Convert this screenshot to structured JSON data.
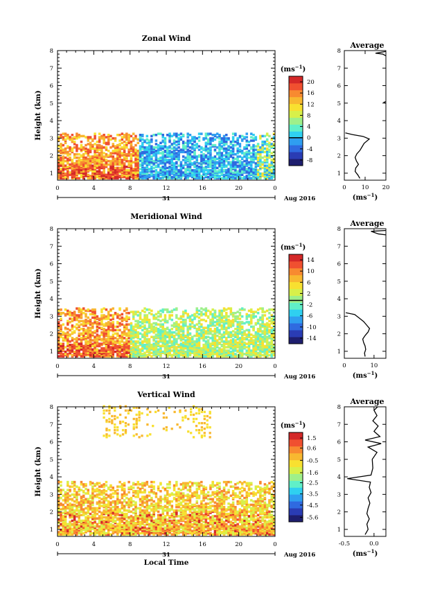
{
  "colors": {
    "scale": [
      "#1e1e6e",
      "#2a3cb4",
      "#2f6ae0",
      "#2f9ef0",
      "#2fd0f0",
      "#60f0c8",
      "#9ef08a",
      "#d8f04a",
      "#f8e030",
      "#f8b830",
      "#f88a30",
      "#f05030",
      "#d42828"
    ],
    "axis": "#000000"
  },
  "chart_data": [
    {
      "type": "heatmap",
      "title": "Zonal Wind",
      "ylabel": "Height (km)",
      "xlabel": "",
      "x_ticks": [
        "0",
        "4",
        "8",
        "12",
        "16",
        "20",
        "0"
      ],
      "y_ticks": [
        "1",
        "2",
        "3",
        "4",
        "5",
        "6",
        "7",
        "8"
      ],
      "x_range": [
        0,
        24
      ],
      "y_range": [
        0.6,
        8.0
      ],
      "date_label": "31",
      "date_suffix": "Aug 2016",
      "colorbar": {
        "unit": "(ms",
        "unit_exp": "−1",
        "unit_close": ")",
        "ticks": [
          "20",
          "16",
          "12",
          "8",
          "4",
          "0",
          "-4",
          "-8"
        ],
        "range": [
          -10,
          22
        ],
        "zero_line": 0
      },
      "profile": {
        "title": "Average",
        "xlabel": "(ms",
        "xlabel_exp": "−1",
        "xlabel_close": ")",
        "x_ticks": [
          "0",
          "10",
          "20"
        ],
        "x_range": [
          0,
          20
        ],
        "points": [
          [
            7.5,
            0.7
          ],
          [
            6.5,
            0.9
          ],
          [
            5.2,
            1.1
          ],
          [
            5.5,
            1.3
          ],
          [
            6.8,
            1.5
          ],
          [
            5.8,
            1.7
          ],
          [
            5.2,
            1.9
          ],
          [
            6.0,
            2.1
          ],
          [
            7.5,
            2.3
          ],
          [
            8.5,
            2.5
          ],
          [
            9.5,
            2.7
          ],
          [
            12.0,
            2.95
          ],
          [
            9.0,
            3.1
          ],
          [
            4.0,
            3.2
          ],
          [
            0.5,
            3.3
          ]
        ],
        "upper_points": [
          [
            20.0,
            7.95
          ],
          [
            15.0,
            7.85
          ],
          [
            18.5,
            7.8
          ],
          [
            20.0,
            7.7
          ]
        ],
        "blip": [
          [
            20,
            5.0
          ],
          [
            19.0,
            5.05
          ],
          [
            20,
            5.1
          ]
        ]
      },
      "field": {
        "layers": [
          [
            1.0,
            10,
            6
          ],
          [
            1.6,
            7,
            6
          ],
          [
            2.2,
            8,
            5
          ],
          [
            2.8,
            10,
            4
          ]
        ],
        "active_hours": [
          [
            0,
            9,
            "warm"
          ],
          [
            9,
            15,
            "cool"
          ],
          [
            15,
            22,
            "cool"
          ],
          [
            22,
            24,
            "mix"
          ]
        ],
        "top_km": 3.2
      }
    },
    {
      "type": "heatmap",
      "title": "Meridional Wind",
      "ylabel": "Height (km)",
      "xlabel": "",
      "x_ticks": [
        "0",
        "4",
        "8",
        "12",
        "16",
        "20",
        "0"
      ],
      "y_ticks": [
        "1",
        "2",
        "3",
        "4",
        "5",
        "6",
        "7",
        "8"
      ],
      "x_range": [
        0,
        24
      ],
      "y_range": [
        0.6,
        8.0
      ],
      "date_label": "31",
      "date_suffix": "Aug 2016",
      "colorbar": {
        "unit": "(ms",
        "unit_exp": "−1",
        "unit_close": ")",
        "ticks": [
          "14",
          "10",
          "6",
          "2",
          "-2",
          "-6",
          "-10",
          "-14"
        ],
        "range": [
          -16,
          16
        ],
        "zero_line": -0.5
      },
      "profile": {
        "title": "Average",
        "xlabel": "(ms",
        "xlabel_exp": "−1",
        "xlabel_close": ")",
        "x_ticks": [
          "0",
          "10"
        ],
        "x_range": [
          0,
          14
        ],
        "points": [
          [
            7.0,
            0.7
          ],
          [
            6.8,
            0.9
          ],
          [
            7.2,
            1.1
          ],
          [
            7.0,
            1.3
          ],
          [
            6.5,
            1.5
          ],
          [
            6.2,
            1.7
          ],
          [
            7.0,
            1.9
          ],
          [
            8.0,
            2.1
          ],
          [
            8.5,
            2.3
          ],
          [
            7.5,
            2.5
          ],
          [
            6.5,
            2.7
          ],
          [
            5.0,
            2.9
          ],
          [
            3.5,
            3.1
          ],
          [
            0.5,
            3.2
          ]
        ],
        "upper_points": [
          [
            14,
            7.9
          ],
          [
            9.0,
            7.85
          ],
          [
            11.5,
            7.7
          ],
          [
            14.0,
            7.65
          ]
        ],
        "blip": []
      },
      "field": {
        "layers": [
          [
            1.0,
            12,
            5
          ],
          [
            1.6,
            9,
            5
          ],
          [
            2.2,
            7,
            5
          ],
          [
            2.8,
            8,
            4
          ]
        ],
        "active_hours": [
          [
            0,
            8,
            "warm"
          ],
          [
            8,
            15,
            "mid"
          ],
          [
            15,
            22,
            "mid"
          ],
          [
            22,
            24,
            "mid"
          ]
        ],
        "top_km": 3.4
      }
    },
    {
      "type": "heatmap",
      "title": "Vertical Wind",
      "ylabel": "Height (km)",
      "xlabel": "Local Time",
      "x_ticks": [
        "0",
        "4",
        "8",
        "12",
        "16",
        "20",
        "0"
      ],
      "y_ticks": [
        "1",
        "2",
        "3",
        "4",
        "5",
        "6",
        "7",
        "8"
      ],
      "x_range": [
        0,
        24
      ],
      "y_range": [
        0.6,
        8.0
      ],
      "date_label": "31",
      "date_suffix": "Aug 2016",
      "colorbar": {
        "unit": "(ms",
        "unit_exp": "−1",
        "unit_close": ")",
        "ticks": [
          "1.5",
          "0.6",
          "-0.5",
          "-1.6",
          "-2.5",
          "-3.5",
          "-4.5",
          "-5.6"
        ],
        "range": [
          -6,
          2
        ],
        "zero_line": null
      },
      "profile": {
        "title": "Average",
        "xlabel": "(ms",
        "xlabel_exp": "−1",
        "xlabel_close": ")",
        "x_ticks": [
          "-0.5",
          "0.0"
        ],
        "x_range": [
          -0.5,
          0.2
        ],
        "points": [
          [
            -0.15,
            0.7
          ],
          [
            -0.1,
            1.0
          ],
          [
            -0.12,
            1.3
          ],
          [
            -0.08,
            1.6
          ],
          [
            -0.12,
            1.9
          ],
          [
            -0.1,
            2.2
          ],
          [
            -0.07,
            2.5
          ],
          [
            -0.1,
            2.8
          ],
          [
            -0.05,
            3.1
          ],
          [
            -0.08,
            3.4
          ],
          [
            -0.06,
            3.7
          ],
          [
            -0.45,
            3.9
          ],
          [
            -0.05,
            4.1
          ],
          [
            -0.02,
            4.5
          ],
          [
            -0.03,
            5.0
          ],
          [
            0.05,
            5.4
          ],
          [
            -0.1,
            5.7
          ],
          [
            0.12,
            5.9
          ],
          [
            -0.15,
            6.1
          ],
          [
            0.1,
            6.3
          ],
          [
            0.0,
            6.6
          ],
          [
            0.07,
            6.9
          ],
          [
            -0.02,
            7.2
          ],
          [
            0.05,
            7.5
          ],
          [
            0.0,
            7.8
          ],
          [
            0.06,
            8.0
          ]
        ],
        "upper_points": [],
        "blip": []
      },
      "field": {
        "layers": [
          [
            1.0,
            10,
            3
          ],
          [
            1.6,
            10,
            3
          ],
          [
            2.2,
            9,
            3
          ],
          [
            2.8,
            9,
            3
          ],
          [
            3.4,
            8,
            2
          ]
        ],
        "active_hours": [
          [
            0,
            24,
            "vert"
          ]
        ],
        "top_km": 3.7
      }
    }
  ]
}
